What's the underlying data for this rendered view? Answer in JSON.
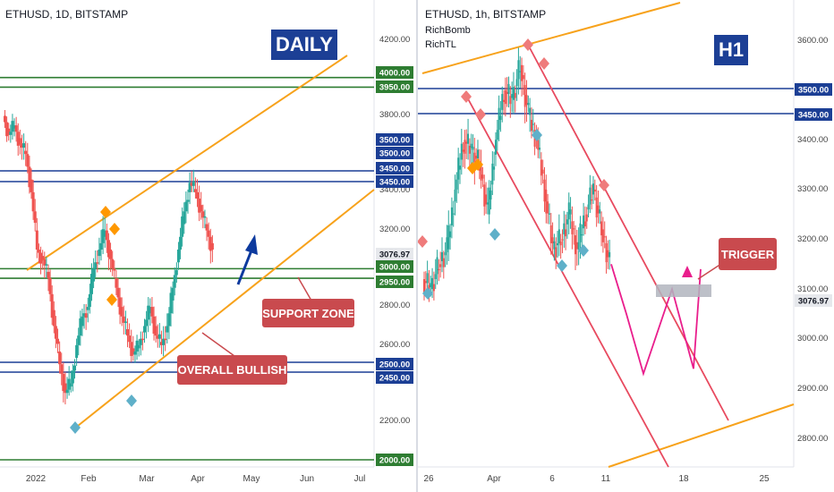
{
  "colors": {
    "up": "#26a69a",
    "down": "#ef5350",
    "support_green": "#2e7d32",
    "resistance_blue": "#1c3f95",
    "trendline_orange": "#f7a21b",
    "channel_red": "#e84a5f",
    "projection_magenta": "#e91e8c",
    "callout_red": "#c94a4e",
    "diamond_orange": "#ff9800",
    "diamond_blue": "#5fb0c9",
    "diamond_red": "#ef7b7b"
  },
  "left": {
    "title": "ETHUSD, 1D, BITSTAMP",
    "badge": "DAILY",
    "callouts": {
      "support": "SUPPORT ZONE",
      "bullish": "OVERALL BULLISH"
    },
    "price_ticks": [
      "4200.00",
      "3800.00",
      "3400.00",
      "3200.00",
      "2800.00",
      "2600.00",
      "2200.00"
    ],
    "time_ticks": [
      "2022",
      "Feb",
      "Mar",
      "Apr",
      "May",
      "Jun",
      "Jul"
    ],
    "labels": [
      {
        "text": "4000.00",
        "color": "green"
      },
      {
        "text": "3950.00",
        "color": "green"
      },
      {
        "text": "3500.00",
        "color": "blue"
      },
      {
        "text": "3500.00",
        "color": "blue"
      },
      {
        "text": "3450.00",
        "color": "blue"
      },
      {
        "text": "3450.00",
        "color": "blue"
      },
      {
        "text": "3076.97",
        "color": "grey"
      },
      {
        "text": "3000.00",
        "color": "green"
      },
      {
        "text": "2950.00",
        "color": "green"
      },
      {
        "text": "2500.00",
        "color": "blue"
      },
      {
        "text": "2450.00",
        "color": "blue"
      },
      {
        "text": "2000.00",
        "color": "green"
      }
    ]
  },
  "right": {
    "title": "ETHUSD, 1h, BITSTAMP",
    "indicators": [
      "RichBomb",
      "RichTL"
    ],
    "badge": "H1",
    "callouts": {
      "trigger": "TRIGGER"
    },
    "price_ticks": [
      "3600.00",
      "3400.00",
      "3300.00",
      "3200.00",
      "3100.00",
      "3000.00",
      "2900.00",
      "2800.00"
    ],
    "time_ticks": [
      "26",
      "Apr",
      "6",
      "11",
      "18",
      "25"
    ],
    "labels": [
      {
        "text": "3500.00",
        "color": "blue"
      },
      {
        "text": "3450.00",
        "color": "blue"
      },
      {
        "text": "3076.97",
        "color": "grey"
      }
    ]
  },
  "chart_data": [
    {
      "type": "candlestick",
      "symbol": "ETHUSD",
      "timeframe": "1D",
      "exchange": "BITSTAMP",
      "ylim": [
        1980,
        4320
      ],
      "horizontal_levels": [
        4000,
        3950,
        3500,
        3450,
        3000,
        2950,
        2500,
        2450,
        2000
      ],
      "last_price": 3076.97,
      "series": [
        {
          "name": "close",
          "values": [
            3700,
            3750,
            3650,
            3600,
            3400,
            3100,
            3050,
            2950,
            2700,
            2500,
            2350,
            2400,
            2600,
            2750,
            2800,
            3000,
            3100,
            3200,
            3050,
            2900,
            2750,
            2650,
            2550,
            2600,
            2700,
            2800,
            2650,
            2600,
            2700,
            2900,
            3100,
            3300,
            3450,
            3400,
            3300,
            3200,
            3100
          ]
        }
      ]
    },
    {
      "type": "candlestick",
      "symbol": "ETHUSD",
      "timeframe": "1h",
      "exchange": "BITSTAMP",
      "ylim": [
        2740,
        3660
      ],
      "horizontal_levels": [
        3500,
        3450
      ],
      "last_price": 3076.97,
      "series": [
        {
          "name": "close",
          "values": [
            3100,
            3150,
            3180,
            3300,
            3400,
            3380,
            3350,
            3250,
            3400,
            3500,
            3480,
            3550,
            3450,
            3400,
            3300,
            3180,
            3200,
            3250,
            3180,
            3250,
            3300,
            3220,
            3150
          ]
        },
        {
          "name": "projection",
          "values": [
            3150,
            3050,
            2930,
            3100,
            2940,
            3140
          ]
        }
      ]
    }
  ]
}
